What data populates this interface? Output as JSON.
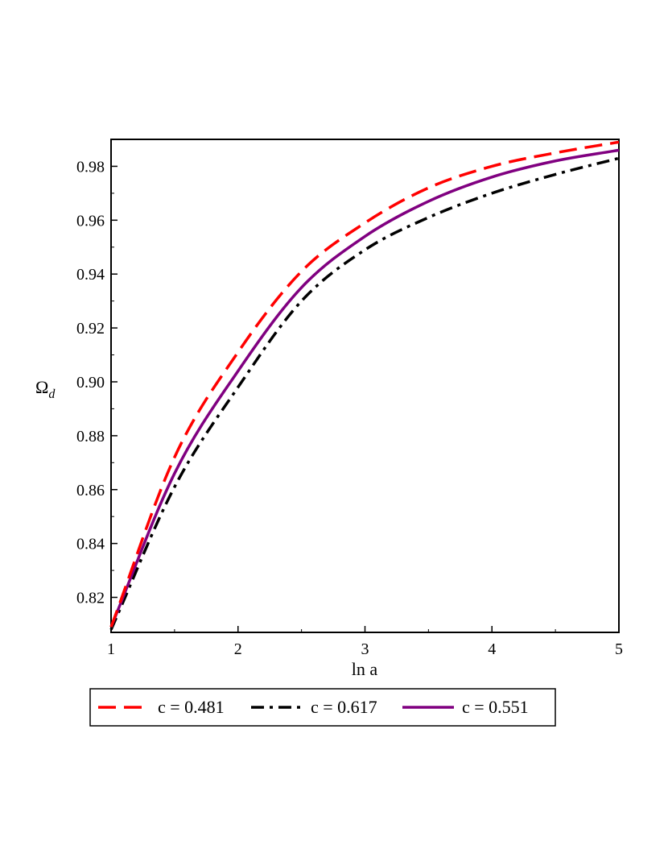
{
  "chart_data": {
    "type": "line",
    "xlabel": "ln a",
    "ylabel": "Ω_d",
    "xlim": [
      1,
      5
    ],
    "ylim": [
      0.807,
      0.99
    ],
    "xticks": [
      "1",
      "2",
      "3",
      "4",
      "5"
    ],
    "yticks": [
      "0.82",
      "0.84",
      "0.86",
      "0.88",
      "0.90",
      "0.92",
      "0.94",
      "0.96",
      "0.98"
    ],
    "grid": false,
    "legend_position": "bottom",
    "series": [
      {
        "name": "c = 0.481",
        "color": "#ff0000",
        "style": "dashed",
        "x": [
          1,
          1.5,
          2,
          2.5,
          3,
          3.5,
          4,
          4.5,
          5
        ],
        "y": [
          0.809,
          0.872,
          0.911,
          0.941,
          0.959,
          0.972,
          0.98,
          0.985,
          0.989
        ]
      },
      {
        "name": "c = 0.617",
        "color": "#000000",
        "style": "dashdot",
        "x": [
          1,
          1.5,
          2,
          2.5,
          3,
          3.5,
          4,
          4.5,
          5
        ],
        "y": [
          0.808,
          0.861,
          0.898,
          0.93,
          0.949,
          0.961,
          0.97,
          0.977,
          0.983
        ]
      },
      {
        "name": "c = 0.551",
        "color": "#800080",
        "style": "solid",
        "x": [
          1,
          1.5,
          2,
          2.5,
          3,
          3.5,
          4,
          4.5,
          5
        ],
        "y": [
          0.809,
          0.866,
          0.904,
          0.935,
          0.954,
          0.967,
          0.976,
          0.982,
          0.986
        ]
      }
    ]
  }
}
